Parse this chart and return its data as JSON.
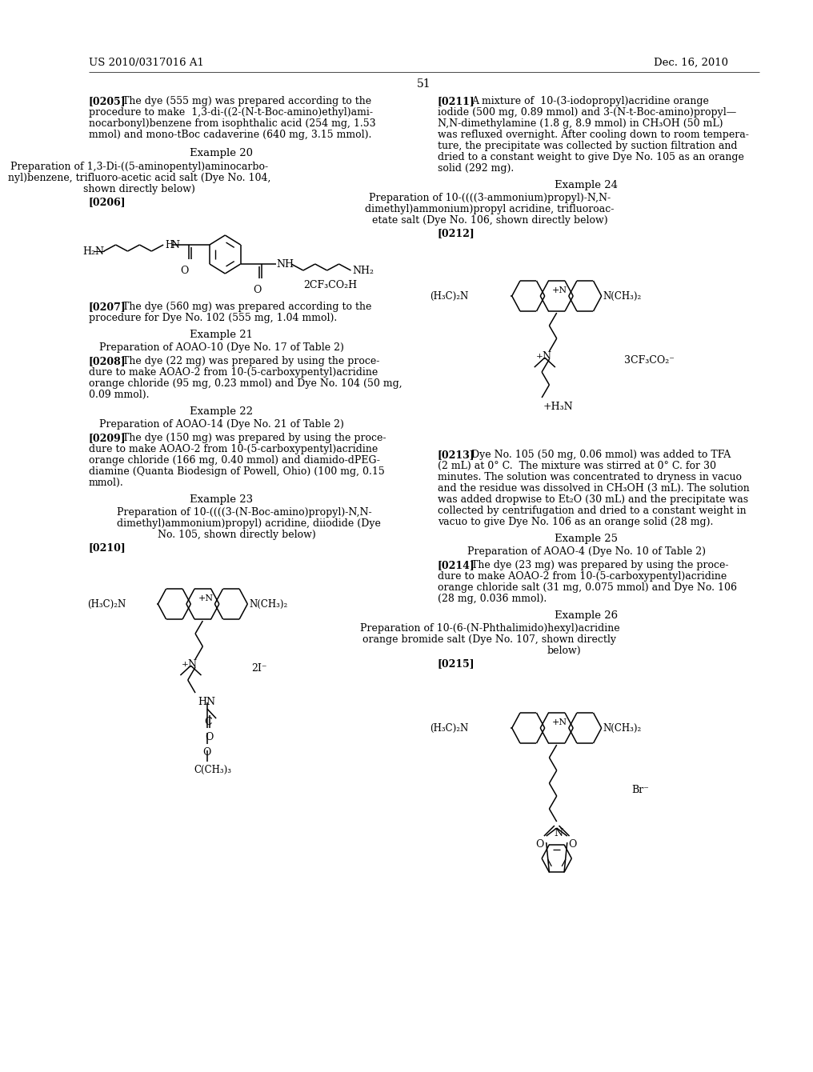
{
  "bg": "#ffffff",
  "header_left": "US 2010/0317016 A1",
  "header_right": "Dec. 16, 2010",
  "page_num": "51"
}
